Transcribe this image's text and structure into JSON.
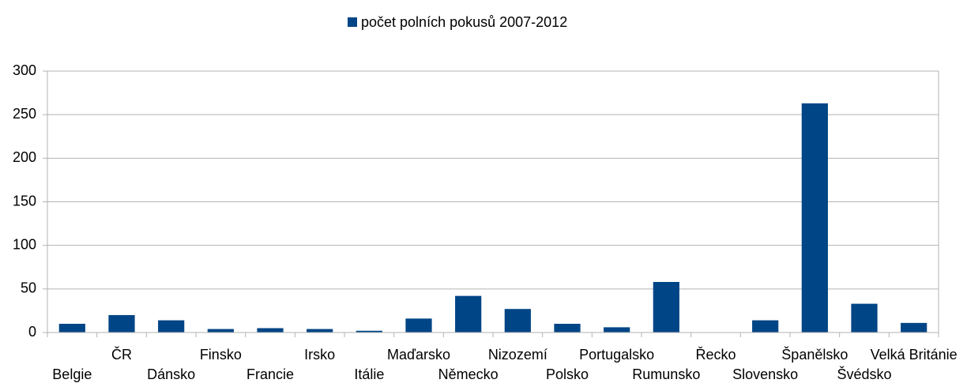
{
  "chart_data": {
    "type": "bar",
    "categories": [
      "Belgie",
      "ČR",
      "Dánsko",
      "Finsko",
      "Francie",
      "Irsko",
      "Itálie",
      "Maďarsko",
      "Německo",
      "Nizozemí",
      "Polsko",
      "Portugalsko",
      "Rumunsko",
      "Řecko",
      "Slovensko",
      "Španělsko",
      "Švédsko",
      "Velká Británie"
    ],
    "series": [
      {
        "name": "počet polních pokusů 2007-2012",
        "color": "#004586",
        "values": [
          10,
          20,
          14,
          4,
          5,
          4,
          2,
          16,
          42,
          27,
          10,
          6,
          58,
          0,
          14,
          263,
          33,
          11
        ]
      }
    ],
    "ylim": [
      0,
      300
    ],
    "yticks": [
      0,
      50,
      100,
      150,
      200,
      250,
      300
    ],
    "grid": true,
    "legend": "top"
  }
}
